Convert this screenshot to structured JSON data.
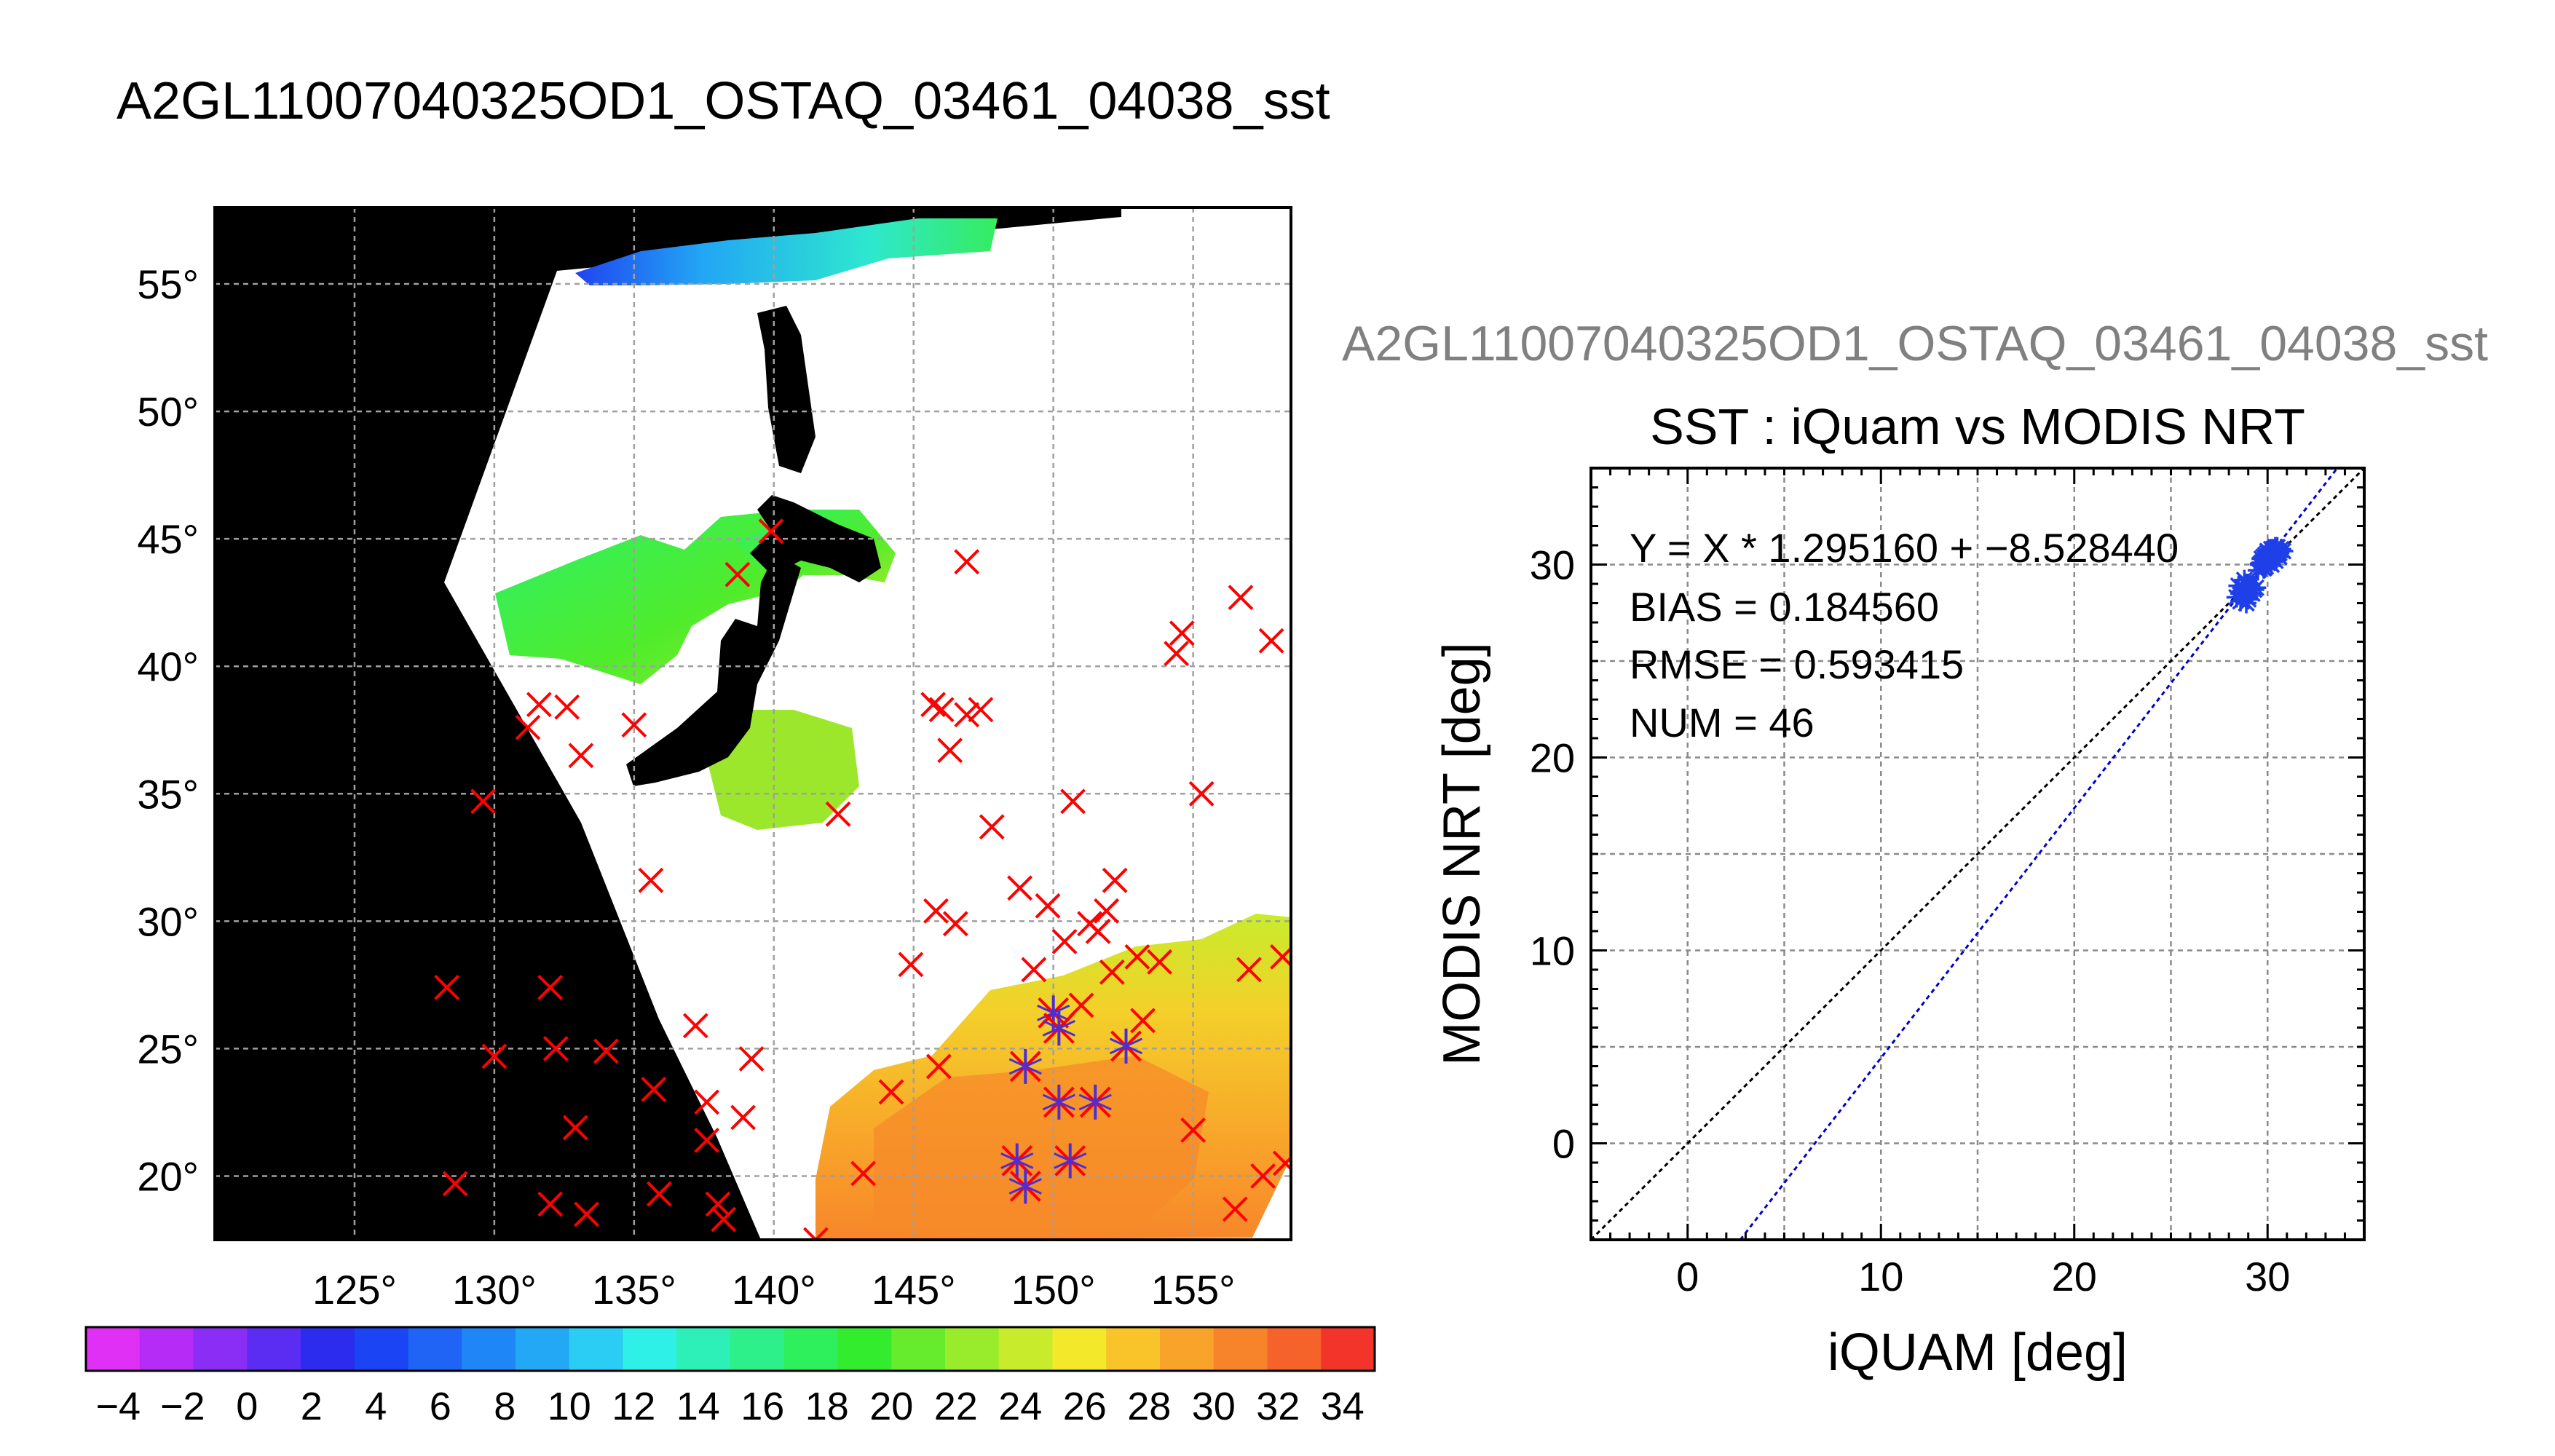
{
  "main_title": "A2GL11007040325OD1_OSTAQ_03461_04038_sst",
  "map": {
    "lon_ticks": [
      "125°",
      "130°",
      "135°",
      "140°",
      "145°",
      "150°",
      "155°"
    ],
    "lat_ticks": [
      "55°",
      "50°",
      "45°",
      "40°",
      "35°",
      "30°",
      "25°",
      "20°"
    ],
    "lon_range": [
      120,
      158.5
    ],
    "lat_range": [
      17.5,
      58
    ],
    "grid": true,
    "background_color": "#000000",
    "cloud_color": "#ffffff",
    "marker_color": "#ff0000",
    "match_color": "#4b2fd6",
    "buoys": [
      [
        128.3,
        27.4
      ],
      [
        128.6,
        19.7
      ],
      [
        129.6,
        34.7
      ],
      [
        130.0,
        24.7
      ],
      [
        131.2,
        37.6
      ],
      [
        131.6,
        38.5
      ],
      [
        132.0,
        27.4
      ],
      [
        132.2,
        25.0
      ],
      [
        132.0,
        18.9
      ],
      [
        132.6,
        38.4
      ],
      [
        133.1,
        36.5
      ],
      [
        132.9,
        21.9
      ],
      [
        133.3,
        18.5
      ],
      [
        134.0,
        24.9
      ],
      [
        135.0,
        37.7
      ],
      [
        135.6,
        31.6
      ],
      [
        135.7,
        23.4
      ],
      [
        135.9,
        19.3
      ],
      [
        137.2,
        25.9
      ],
      [
        137.6,
        22.9
      ],
      [
        137.6,
        21.4
      ],
      [
        138.0,
        18.9
      ],
      [
        138.2,
        18.3
      ],
      [
        138.9,
        22.3
      ],
      [
        139.2,
        24.6
      ],
      [
        138.7,
        43.6
      ],
      [
        139.9,
        45.3
      ],
      [
        142.3,
        34.2
      ],
      [
        143.2,
        20.1
      ],
      [
        144.2,
        23.3
      ],
      [
        144.9,
        28.3
      ],
      [
        145.7,
        38.5
      ],
      [
        146.0,
        38.3
      ],
      [
        146.3,
        36.7
      ],
      [
        146.9,
        38.1
      ],
      [
        147.4,
        38.3
      ],
      [
        145.8,
        30.4
      ],
      [
        146.5,
        29.9
      ],
      [
        145.9,
        24.3
      ],
      [
        146.9,
        44.1
      ],
      [
        147.8,
        33.7
      ],
      [
        148.8,
        31.3
      ],
      [
        149.3,
        28.1
      ],
      [
        149.8,
        30.6
      ],
      [
        150.4,
        29.2
      ],
      [
        151.3,
        29.9
      ],
      [
        151.9,
        30.4
      ],
      [
        151.6,
        29.6
      ],
      [
        150.7,
        34.7
      ],
      [
        152.2,
        31.6
      ],
      [
        151.0,
        26.7
      ],
      [
        152.1,
        28.0
      ],
      [
        153.0,
        28.6
      ],
      [
        153.8,
        28.4
      ],
      [
        153.2,
        26.1
      ],
      [
        154.4,
        40.5
      ],
      [
        154.6,
        41.3
      ],
      [
        155.3,
        35.0
      ],
      [
        155.0,
        21.8
      ],
      [
        156.7,
        42.7
      ],
      [
        157.0,
        28.1
      ],
      [
        157.8,
        41.0
      ],
      [
        158.2,
        28.6
      ],
      [
        156.5,
        18.7
      ],
      [
        157.5,
        20.0
      ],
      [
        158.3,
        20.5
      ],
      [
        141.5,
        17.5
      ]
    ],
    "matches": [
      [
        150.0,
        26.4
      ],
      [
        150.2,
        25.8
      ],
      [
        149.0,
        24.3
      ],
      [
        150.2,
        22.9
      ],
      [
        151.5,
        22.9
      ],
      [
        148.7,
        20.6
      ],
      [
        149.0,
        19.6
      ],
      [
        150.6,
        20.6
      ],
      [
        152.6,
        25.1
      ]
    ]
  },
  "colorbar": {
    "ticks": [
      "−4",
      "−2",
      "0",
      "2",
      "4",
      "6",
      "8",
      "10",
      "12",
      "14",
      "16",
      "18",
      "20",
      "22",
      "24",
      "26",
      "28",
      "30",
      "32",
      "34"
    ],
    "range": [
      -5,
      35
    ],
    "colors": [
      "#e030f5",
      "#b42cf5",
      "#8a2ef5",
      "#5b2df2",
      "#2b2cee",
      "#1a44f4",
      "#1f64f5",
      "#1f86f5",
      "#23a8f5",
      "#2ccdf4",
      "#2ff0e6",
      "#2cf0b7",
      "#2df08a",
      "#2ef05c",
      "#33ec2e",
      "#66ec2c",
      "#99ec2b",
      "#c8ec2b",
      "#f4e82b",
      "#f8c42a",
      "#f8a42a",
      "#f7842a",
      "#f5622a",
      "#f2342a"
    ]
  },
  "scatter_title": "A2GL11007040325OD1_OSTAQ_03461_04038_sst",
  "chart_data": {
    "type": "scatter",
    "title": "SST : iQuam vs MODIS NRT",
    "xlabel": "iQUAM [deg]",
    "ylabel": "MODIS NRT [deg]",
    "xlim": [
      -5,
      35
    ],
    "ylim": [
      -5,
      35
    ],
    "x_ticks": [
      "0",
      "10",
      "20",
      "30"
    ],
    "y_ticks": [
      "0",
      "10",
      "20",
      "30"
    ],
    "grid": true,
    "annotations": [
      "Y = X * 1.295160 + −8.528440",
      "BIAS = 0.184560",
      "RMSE = 0.593415",
      "NUM = 46"
    ],
    "fit": {
      "slope": 1.29516,
      "intercept": -8.52844,
      "color": "#0000cc"
    },
    "one_to_one_color": "#000000",
    "marker_color": "#1f3fe8",
    "series": [
      {
        "x": [
          28.4,
          28.6,
          28.7,
          28.8,
          28.9,
          29.0,
          28.5,
          28.8,
          29.0,
          29.1,
          28.6,
          28.9,
          29.2,
          28.7,
          29.0,
          29.3,
          29.5,
          29.6,
          29.7,
          29.8,
          29.9,
          30.0,
          30.1,
          30.2,
          30.3,
          30.4,
          30.5,
          30.6,
          30.7,
          30.8,
          29.8,
          30.0,
          30.2,
          30.4,
          30.6,
          29.9,
          30.1,
          30.3,
          30.5,
          29.7,
          30.0,
          30.2,
          30.4,
          28.9,
          29.1,
          29.4
        ],
        "y": [
          28.3,
          28.5,
          28.8,
          28.4,
          28.6,
          28.9,
          28.9,
          29.2,
          28.2,
          28.7,
          28.1,
          28.0,
          28.5,
          28.6,
          29.0,
          28.7,
          29.7,
          30.0,
          30.3,
          29.8,
          30.5,
          30.1,
          30.6,
          30.3,
          30.8,
          30.5,
          30.9,
          30.6,
          30.8,
          30.7,
          30.4,
          30.7,
          30.0,
          30.9,
          30.4,
          29.9,
          30.2,
          30.5,
          30.7,
          30.1,
          30.6,
          30.8,
          30.2,
          29.0,
          28.9,
          28.8
        ]
      }
    ]
  }
}
